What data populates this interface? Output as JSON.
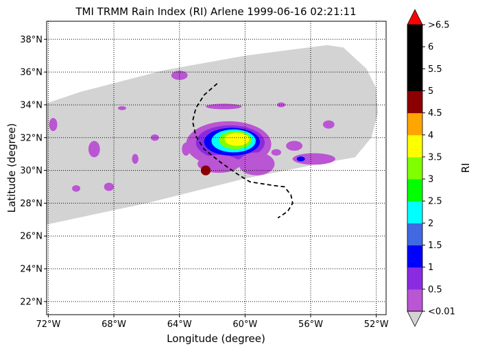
{
  "chart_data": {
    "type": "heatmap",
    "title": "TMI TRMM Rain Index (RI) Arlene 1999-06-16 02:21:11",
    "xlabel": "Longitude (degree)",
    "ylabel": "Latitude (degree)",
    "xlim": [
      -72.1,
      -51.4
    ],
    "ylim": [
      21.2,
      39.1
    ],
    "x_ticks": [
      {
        "value": -72,
        "label": "72°W"
      },
      {
        "value": -68,
        "label": "68°W"
      },
      {
        "value": -64,
        "label": "64°W"
      },
      {
        "value": -60,
        "label": "60°W"
      },
      {
        "value": -56,
        "label": "56°W"
      },
      {
        "value": -52,
        "label": "52°W"
      }
    ],
    "y_ticks": [
      {
        "value": 22,
        "label": "22°N"
      },
      {
        "value": 24,
        "label": "24°N"
      },
      {
        "value": 26,
        "label": "26°N"
      },
      {
        "value": 28,
        "label": "28°N"
      },
      {
        "value": 30,
        "label": "30°N"
      },
      {
        "value": 32,
        "label": "32°N"
      },
      {
        "value": 34,
        "label": "34°N"
      },
      {
        "value": 36,
        "label": "36°N"
      },
      {
        "value": 38,
        "label": "38°N"
      }
    ],
    "grid": true,
    "grid_style": "dotted",
    "swath_color": "#d3d3d3",
    "swath_outline": [
      [
        -72.1,
        26.7
      ],
      [
        -66.0,
        28.0
      ],
      [
        -60.0,
        29.5
      ],
      [
        -55.0,
        30.5
      ],
      [
        -53.3,
        30.8
      ],
      [
        -52.3,
        32.0
      ],
      [
        -51.9,
        33.5
      ],
      [
        -52.0,
        35.0
      ],
      [
        -52.6,
        36.2
      ],
      [
        -54.0,
        37.5
      ],
      [
        -55.0,
        37.65
      ],
      [
        -60.0,
        37.0
      ],
      [
        -65.0,
        36.1
      ],
      [
        -70.0,
        34.8
      ],
      [
        -72.1,
        34.1
      ]
    ],
    "track": [
      [
        -61.7,
        35.3
      ],
      [
        -62.5,
        34.6
      ],
      [
        -63.0,
        33.8
      ],
      [
        -63.2,
        33.0
      ],
      [
        -63.0,
        32.1
      ],
      [
        -62.5,
        31.3
      ],
      [
        -61.5,
        30.5
      ],
      [
        -60.5,
        29.8
      ],
      [
        -59.7,
        29.3
      ],
      [
        -58.4,
        29.1
      ],
      [
        -57.6,
        29.0
      ],
      [
        -57.2,
        28.5
      ],
      [
        -57.1,
        28.0
      ],
      [
        -57.4,
        27.5
      ],
      [
        -58.0,
        27.1
      ]
    ],
    "track_style": "black dashed",
    "rain_cells": [
      {
        "lon": -61.0,
        "lat": 31.6,
        "rx": 2.6,
        "ry": 1.4,
        "ri": 0.3
      },
      {
        "lon": -60.9,
        "lat": 31.7,
        "rx": 2.1,
        "ry": 1.05,
        "ri": 0.8
      },
      {
        "lon": -60.8,
        "lat": 31.75,
        "rx": 1.7,
        "ry": 0.85,
        "ri": 1.3
      },
      {
        "lon": -60.7,
        "lat": 31.8,
        "rx": 1.35,
        "ry": 0.7,
        "ri": 2.2
      },
      {
        "lon": -60.6,
        "lat": 31.85,
        "rx": 1.0,
        "ry": 0.55,
        "ri": 3.2
      },
      {
        "lon": -60.5,
        "lat": 31.9,
        "rx": 0.75,
        "ry": 0.4,
        "ri": 3.8
      },
      {
        "lon": -61.6,
        "lat": 30.4,
        "rx": 1.3,
        "ry": 0.55,
        "ri": 0.3
      },
      {
        "lon": -59.3,
        "lat": 30.4,
        "rx": 1.1,
        "ry": 0.7,
        "ri": 0.3
      },
      {
        "lon": -55.8,
        "lat": 30.7,
        "rx": 1.3,
        "ry": 0.35,
        "ri": 0.3
      },
      {
        "lon": -56.6,
        "lat": 30.7,
        "rx": 0.25,
        "ry": 0.15,
        "ri": 1.3
      },
      {
        "lon": -61.3,
        "lat": 33.9,
        "rx": 1.1,
        "ry": 0.17,
        "ri": 0.3
      },
      {
        "lon": -64.0,
        "lat": 35.8,
        "rx": 0.5,
        "ry": 0.28,
        "ri": 0.3
      },
      {
        "lon": -71.7,
        "lat": 32.8,
        "rx": 0.25,
        "ry": 0.4,
        "ri": 0.3
      },
      {
        "lon": -69.2,
        "lat": 31.3,
        "rx": 0.35,
        "ry": 0.5,
        "ri": 0.3
      },
      {
        "lon": -57.0,
        "lat": 31.5,
        "rx": 0.5,
        "ry": 0.3,
        "ri": 0.3
      },
      {
        "lon": -54.9,
        "lat": 32.8,
        "rx": 0.35,
        "ry": 0.25,
        "ri": 0.3
      },
      {
        "lon": -68.3,
        "lat": 29.0,
        "rx": 0.3,
        "ry": 0.25,
        "ri": 0.3
      },
      {
        "lon": -65.5,
        "lat": 32.0,
        "rx": 0.25,
        "ry": 0.2,
        "ri": 0.3
      },
      {
        "lon": -66.7,
        "lat": 30.7,
        "rx": 0.2,
        "ry": 0.3,
        "ri": 0.3
      },
      {
        "lon": -67.5,
        "lat": 33.8,
        "rx": 0.25,
        "ry": 0.12,
        "ri": 0.3
      },
      {
        "lon": -70.3,
        "lat": 28.9,
        "rx": 0.25,
        "ry": 0.2,
        "ri": 0.3
      },
      {
        "lon": -63.6,
        "lat": 31.3,
        "rx": 0.25,
        "ry": 0.4,
        "ri": 0.3
      },
      {
        "lon": -57.8,
        "lat": 34.0,
        "rx": 0.25,
        "ry": 0.15,
        "ri": 0.3
      },
      {
        "lon": -58.1,
        "lat": 31.1,
        "rx": 0.3,
        "ry": 0.2,
        "ri": 0.3
      },
      {
        "lon": -62.4,
        "lat": 30.0,
        "rx": 0.3,
        "ry": 0.3,
        "ri": 4.8
      }
    ],
    "colorbar": {
      "label": "RI",
      "boundaries": [
        0.01,
        0.5,
        1,
        1.5,
        2,
        2.5,
        3,
        3.5,
        4,
        4.5,
        5,
        5.5,
        6,
        6.5
      ],
      "tick_labels": [
        "<0.01",
        "0.5",
        "1",
        "1.5",
        "2",
        "2.5",
        "3",
        "3.5",
        "4",
        "4.5",
        "5",
        "5.5",
        "6",
        ">6.5"
      ],
      "colors": [
        "#ba55d3",
        "#8a2be2",
        "#0000ff",
        "#4169e1",
        "#00ffff",
        "#00ff00",
        "#7fff00",
        "#ffff00",
        "#ffa500",
        "#8b0000",
        "#000000",
        "#000000",
        "#000000"
      ],
      "under_color": "#d3d3d3",
      "over_color": "#ff0000"
    }
  }
}
